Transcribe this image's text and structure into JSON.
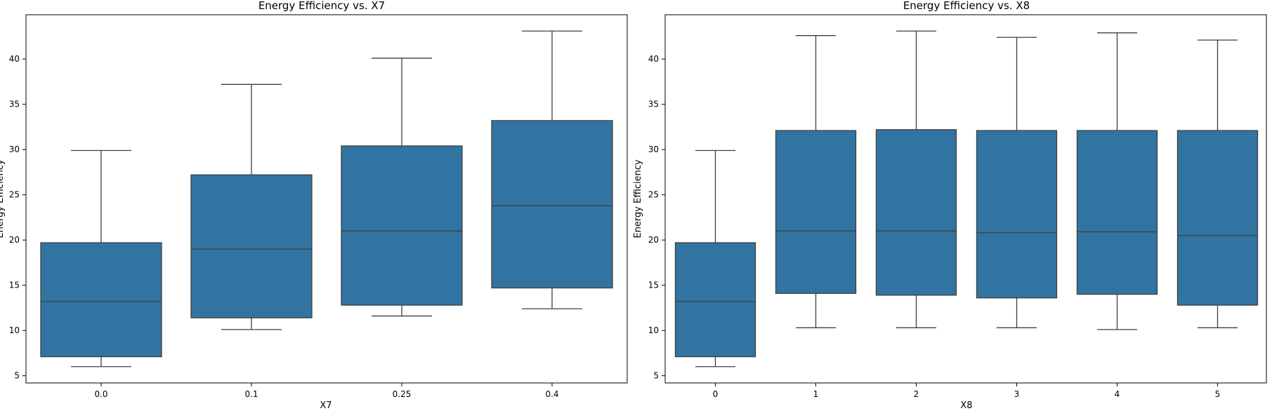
{
  "chart_data": [
    {
      "type": "box",
      "title": "Energy Efficiency vs. X7",
      "xlabel": "X7",
      "ylabel": "Energy Efficiency",
      "ylim": [
        4.2,
        44.9
      ],
      "yticks": [
        5,
        10,
        15,
        20,
        25,
        30,
        35,
        40
      ],
      "categories": [
        "0.0",
        "0.1",
        "0.25",
        "0.4"
      ],
      "boxes": [
        {
          "whisker_low": 6.0,
          "q1": 7.1,
          "median": 13.2,
          "q3": 19.7,
          "whisker_high": 29.9
        },
        {
          "whisker_low": 10.1,
          "q1": 11.4,
          "median": 19.0,
          "q3": 27.2,
          "whisker_high": 37.2
        },
        {
          "whisker_low": 11.6,
          "q1": 12.8,
          "median": 21.0,
          "q3": 30.4,
          "whisker_high": 40.1
        },
        {
          "whisker_low": 12.4,
          "q1": 14.7,
          "median": 23.8,
          "q3": 33.2,
          "whisker_high": 43.1
        }
      ]
    },
    {
      "type": "box",
      "title": "Energy Efficiency vs. X8",
      "xlabel": "X8",
      "ylabel": "Energy Efficiency",
      "ylim": [
        4.2,
        44.9
      ],
      "yticks": [
        5,
        10,
        15,
        20,
        25,
        30,
        35,
        40
      ],
      "categories": [
        "0",
        "1",
        "2",
        "3",
        "4",
        "5"
      ],
      "boxes": [
        {
          "whisker_low": 6.0,
          "q1": 7.1,
          "median": 13.2,
          "q3": 19.7,
          "whisker_high": 29.9
        },
        {
          "whisker_low": 10.3,
          "q1": 14.1,
          "median": 21.0,
          "q3": 32.1,
          "whisker_high": 42.6
        },
        {
          "whisker_low": 10.3,
          "q1": 13.9,
          "median": 21.0,
          "q3": 32.2,
          "whisker_high": 43.1
        },
        {
          "whisker_low": 10.3,
          "q1": 13.6,
          "median": 20.8,
          "q3": 32.1,
          "whisker_high": 42.4
        },
        {
          "whisker_low": 10.1,
          "q1": 14.0,
          "median": 20.9,
          "q3": 32.1,
          "whisker_high": 42.9
        },
        {
          "whisker_low": 10.3,
          "q1": 12.8,
          "median": 20.5,
          "q3": 32.1,
          "whisker_high": 42.1
        }
      ]
    }
  ]
}
